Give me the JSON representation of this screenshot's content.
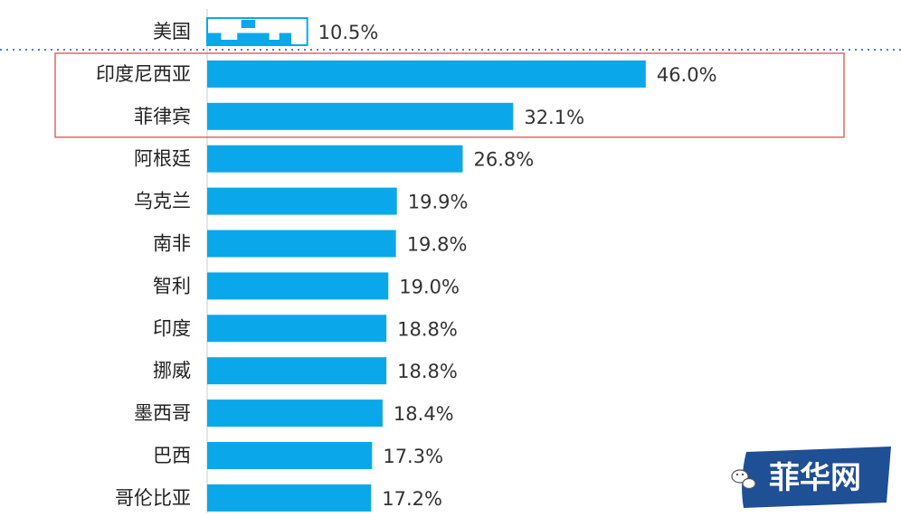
{
  "chart_data": {
    "type": "bar",
    "orientation": "horizontal",
    "categories": [
      "美国",
      "印度尼西亚",
      "菲律宾",
      "阿根廷",
      "乌克兰",
      "南非",
      "智利",
      "印度",
      "挪威",
      "墨西哥",
      "巴西",
      "哥伦比亚"
    ],
    "values": [
      10.5,
      46.0,
      32.1,
      26.8,
      19.9,
      19.8,
      19.0,
      18.8,
      18.8,
      18.4,
      17.3,
      17.2
    ],
    "value_labels": [
      "10.5%",
      "46.0%",
      "32.1%",
      "26.8%",
      "19.9%",
      "19.8%",
      "19.0%",
      "18.8%",
      "18.8%",
      "18.4%",
      "17.3%",
      "17.2%"
    ],
    "unit": "%",
    "bar_color": "#0aa8ea",
    "reference_category": "美国",
    "reference_bar_style": "outlined-patterned",
    "highlighted_categories": [
      "印度尼西亚",
      "菲律宾"
    ],
    "highlight_color": "#e06767",
    "separator_color": "#4a7fc8",
    "grid": false
  },
  "watermark": {
    "text": "菲华网",
    "background_color": "#1f4f95"
  }
}
